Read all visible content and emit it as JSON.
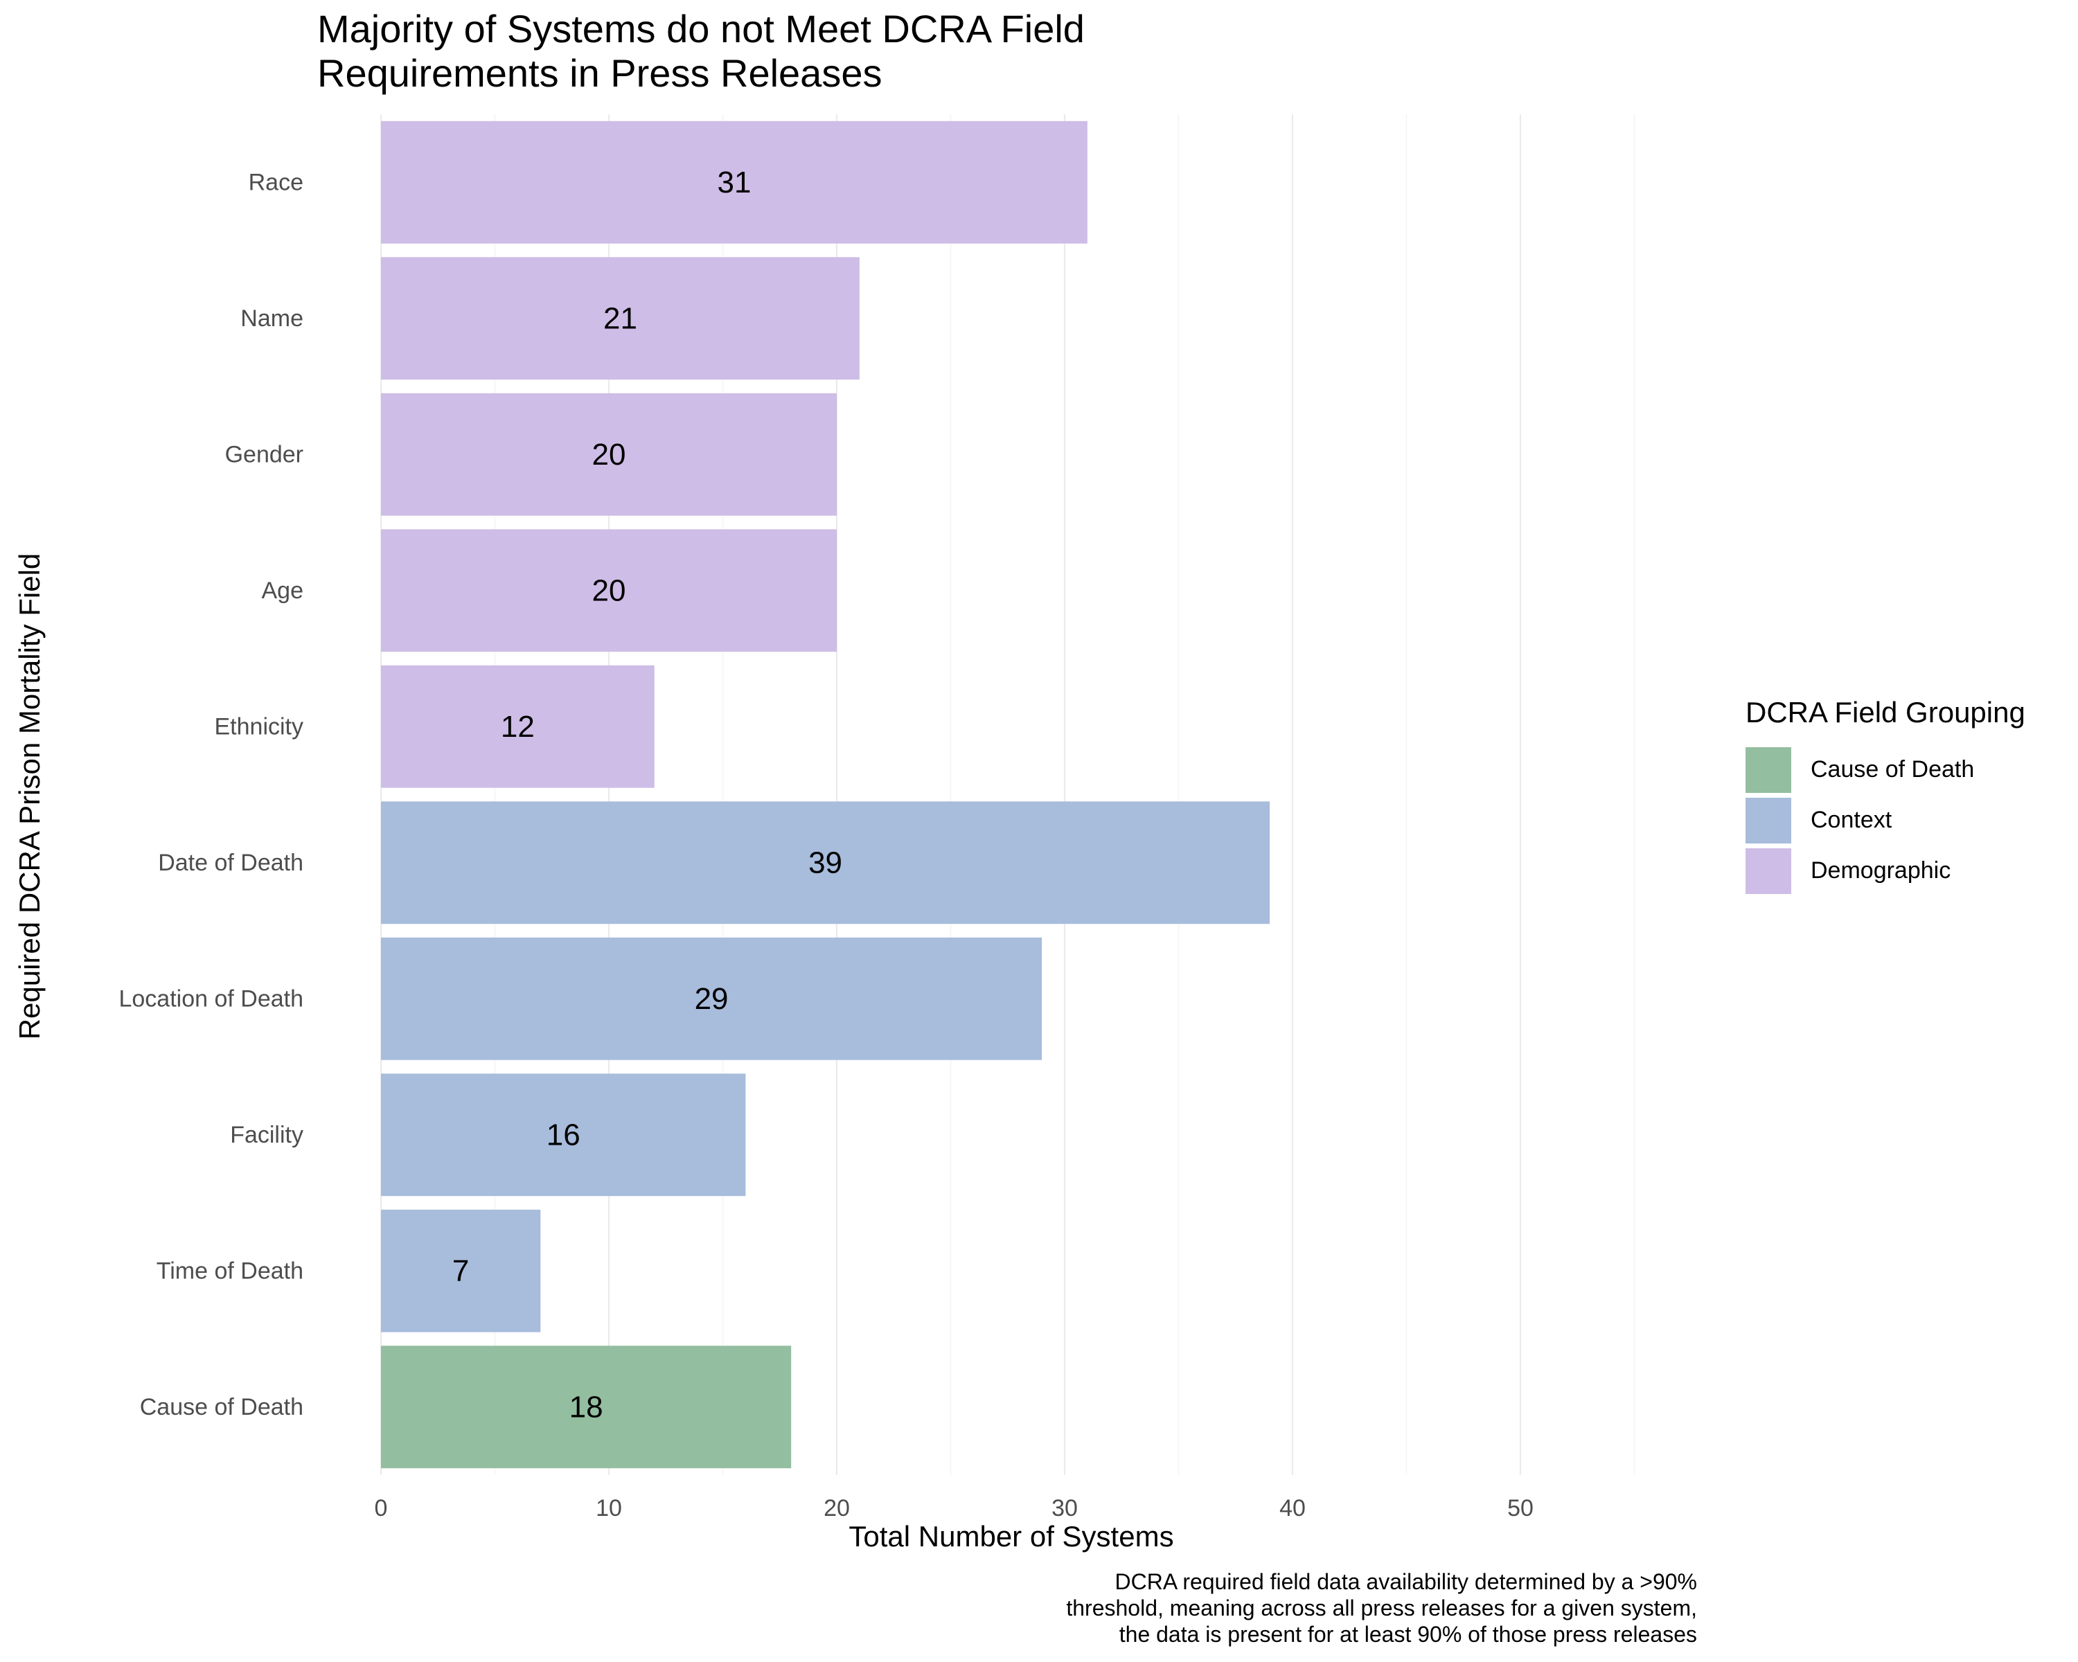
{
  "chart_data": {
    "type": "bar",
    "orientation": "horizontal",
    "title": "Majority of Systems do not Meet DCRA Field Requirements in Press Releases",
    "title_lines": [
      "Majority of Systems do not Meet DCRA Field",
      "Requirements in Press Releases"
    ],
    "xlabel": "Total Number of Systems",
    "ylabel": "Required DCRA Prison Mortality Field",
    "xlim": [
      0,
      55
    ],
    "x_ticks": [
      0,
      10,
      20,
      30,
      40,
      50
    ],
    "grid": "vertical major and minor lines",
    "categories": [
      "Race",
      "Name",
      "Gender",
      "Age",
      "Ethnicity",
      "Date of Death",
      "Location of Death",
      "Facility",
      "Time of Death",
      "Cause of Death"
    ],
    "values": [
      31,
      21,
      20,
      20,
      12,
      39,
      29,
      16,
      7,
      18
    ],
    "groups": [
      "Demographic",
      "Demographic",
      "Demographic",
      "Demographic",
      "Demographic",
      "Context",
      "Context",
      "Context",
      "Context",
      "Cause of Death"
    ],
    "legend": {
      "title": "DCRA Field Grouping",
      "placement": "right",
      "entries": [
        {
          "name": "Cause of Death",
          "color": "#93BEA0"
        },
        {
          "name": "Context",
          "color": "#A8BCDC"
        },
        {
          "name": "Demographic",
          "color": "#CEBDE6"
        }
      ]
    },
    "caption_lines": [
      "DCRA required field data availability determined by a >90%",
      "threshold, meaning across all press releases for a given system,",
      "the data is present for at least 90% of those press releases"
    ]
  }
}
